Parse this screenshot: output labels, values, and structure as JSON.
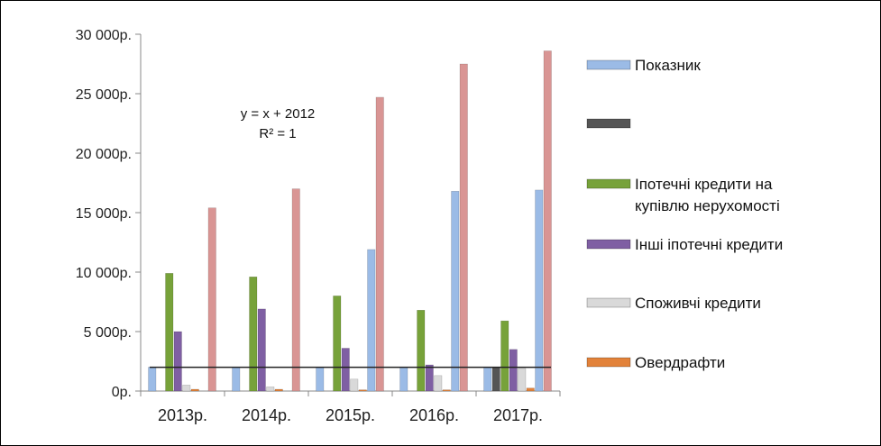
{
  "chart_data": {
    "type": "bar",
    "categories": [
      "2013р.",
      "2014р.",
      "2015р.",
      "2016р.",
      "2017р."
    ],
    "y_tick_labels": [
      "0р.",
      "5 000р.",
      "10 000р.",
      "15 000р.",
      "20 000р.",
      "25 000р.",
      "30 000р."
    ],
    "ylim": [
      0,
      30000
    ],
    "grid": false,
    "legend_position": "right",
    "series": [
      {
        "name": "Показник",
        "color": "#9bbbe6",
        "values": [
          2013,
          2014,
          2015,
          2016,
          2017
        ]
      },
      {
        "name": "",
        "color": "#555555",
        "values": [
          0,
          0,
          0,
          0,
          2000
        ]
      },
      {
        "name": "Іпотечні кредити на купівлю нерухомості",
        "color": "#77a23a",
        "values": [
          9900,
          9600,
          8000,
          6800,
          5900
        ]
      },
      {
        "name": "Інші іпотечні кредити",
        "color": "#7f5fa3",
        "values": [
          5000,
          6900,
          3600,
          2200,
          3500
        ]
      },
      {
        "name": "Споживчі кредити",
        "color": "#d9d9d9",
        "values": [
          500,
          350,
          1000,
          1300,
          1900
        ]
      },
      {
        "name": "Овердрафти",
        "color": "#e2823a",
        "values": [
          150,
          150,
          100,
          100,
          250
        ]
      },
      {
        "name": "",
        "color": "#9bbbe6",
        "values": [
          0,
          0,
          11900,
          16800,
          16900
        ]
      },
      {
        "name": "",
        "color": "#d99594",
        "values": [
          15400,
          17000,
          24700,
          27500,
          28600
        ]
      }
    ],
    "trendline": {
      "value": 2000,
      "color": "#222222"
    },
    "annotation": {
      "equation": "y = x + 2012",
      "r_squared": "R² = 1"
    }
  }
}
